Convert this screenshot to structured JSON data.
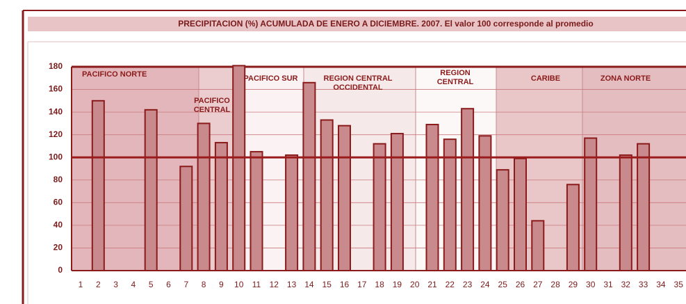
{
  "chart_data": {
    "type": "bar",
    "title": "PRECIPITACION (%) ACUMULADA DE ENERO A DICIEMBRE. 2007. El valor 100 corresponde al promedio",
    "categories": [
      1,
      2,
      3,
      4,
      5,
      6,
      7,
      8,
      9,
      10,
      11,
      12,
      13,
      14,
      15,
      16,
      17,
      18,
      19,
      20,
      21,
      22,
      23,
      24,
      25,
      26,
      27,
      28,
      29,
      30,
      31,
      32,
      33,
      34,
      35
    ],
    "values": [
      null,
      150,
      null,
      null,
      142,
      null,
      92,
      130,
      113,
      181,
      105,
      null,
      102,
      166,
      133,
      128,
      null,
      112,
      121,
      null,
      129,
      116,
      143,
      119,
      89,
      99,
      44,
      null,
      76,
      117,
      null,
      102,
      112,
      null,
      null
    ],
    "color": "#c98a8e",
    "ylim": [
      0,
      180
    ],
    "yticks": [
      0,
      20,
      40,
      60,
      80,
      100,
      120,
      140,
      160,
      180
    ],
    "grid": true,
    "reference_line": 100,
    "annotations": [
      "PACIFICO NORTE",
      "PACIFICO CENTRAL",
      "PACIFICO SUR",
      "REGION CENTRAL OCCIDENTAL",
      "REGION CENTRAL",
      "CARIBE",
      "ZONA NORTE"
    ]
  }
}
